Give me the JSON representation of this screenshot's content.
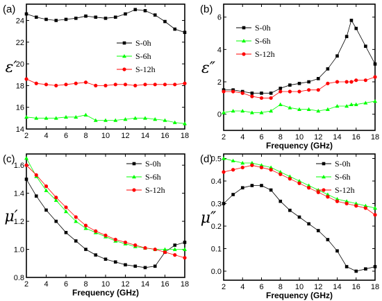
{
  "colors": {
    "s0": "#000000",
    "s6": "#00ff00",
    "s12": "#ff0000"
  },
  "chart_data": [
    {
      "type": "line",
      "panel_label": "(a)",
      "xlabel": "",
      "ylabel": "ε′",
      "xlim": [
        2,
        18
      ],
      "ylim": [
        14,
        25.5
      ],
      "xticks": [
        2,
        4,
        6,
        8,
        10,
        12,
        14,
        16,
        18
      ],
      "yticks": [
        14,
        16,
        18,
        20,
        22,
        24
      ],
      "legend_position": "center-right",
      "x": [
        2,
        3,
        4,
        5,
        6,
        7,
        8,
        9,
        10,
        11,
        12,
        13,
        14,
        15,
        16,
        17,
        18
      ],
      "series": [
        {
          "name": "S-0h",
          "color_key": "s0",
          "marker": "square",
          "values": [
            24.6,
            24.3,
            24.1,
            24.0,
            24.1,
            24.2,
            24.4,
            24.3,
            24.2,
            24.3,
            24.6,
            25.0,
            24.9,
            24.5,
            23.9,
            23.2,
            22.9
          ]
        },
        {
          "name": "S-6h",
          "color_key": "s6",
          "marker": "triangle",
          "values": [
            15.1,
            15.0,
            15.0,
            15.0,
            15.1,
            15.1,
            15.3,
            14.8,
            14.8,
            14.8,
            14.9,
            15.0,
            15.0,
            14.9,
            14.8,
            14.6,
            14.5
          ]
        },
        {
          "name": "S-12h",
          "color_key": "s12",
          "marker": "circle",
          "values": [
            18.6,
            18.2,
            18.1,
            18.0,
            18.1,
            18.2,
            18.3,
            18.0,
            18.0,
            18.1,
            18.1,
            18.0,
            18.1,
            18.1,
            18.1,
            18.1,
            18.2
          ]
        }
      ]
    },
    {
      "type": "line",
      "panel_label": "(b)",
      "xlabel": "Frequency (GHz)",
      "ylabel": "ε″",
      "xlim": [
        2,
        18
      ],
      "ylim": [
        -1,
        6.8
      ],
      "xticks": [
        2,
        4,
        6,
        8,
        10,
        12,
        14,
        16,
        18
      ],
      "yticks": [
        0,
        2,
        4,
        6
      ],
      "legend_position": "top-center",
      "x": [
        2,
        3,
        4,
        5,
        6,
        7,
        8,
        9,
        10,
        11,
        12,
        13,
        14,
        15,
        15.5,
        16,
        17,
        18
      ],
      "series": [
        {
          "name": "S-0h",
          "color_key": "s0",
          "marker": "square",
          "values": [
            1.5,
            1.5,
            1.4,
            1.3,
            1.3,
            1.3,
            1.6,
            1.8,
            1.9,
            2.0,
            2.2,
            2.8,
            3.6,
            4.8,
            5.8,
            5.3,
            4.2,
            3.1
          ]
        },
        {
          "name": "S-6h",
          "color_key": "s6",
          "marker": "triangle",
          "values": [
            0.1,
            0.2,
            0.2,
            0.1,
            0.1,
            0.2,
            0.6,
            0.4,
            0.3,
            0.3,
            0.2,
            0.3,
            0.5,
            0.5,
            0.6,
            0.6,
            0.7,
            0.8
          ]
        },
        {
          "name": "S-12h",
          "color_key": "s12",
          "marker": "circle",
          "values": [
            1.4,
            1.4,
            1.3,
            1.1,
            1.0,
            1.0,
            1.4,
            1.4,
            1.4,
            1.5,
            1.5,
            1.9,
            2.0,
            2.0,
            2.0,
            2.1,
            2.1,
            2.3
          ]
        }
      ]
    },
    {
      "type": "line",
      "panel_label": "(c)",
      "xlabel": "Frequency (GHz)",
      "ylabel": "μ′",
      "xlim": [
        2,
        18
      ],
      "ylim": [
        0.8,
        1.68
      ],
      "xticks": [
        2,
        4,
        6,
        8,
        10,
        12,
        14,
        16,
        18
      ],
      "yticks": [
        0.8,
        1.0,
        1.2,
        1.4,
        1.6
      ],
      "legend_position": "top-right",
      "x": [
        2,
        3,
        4,
        5,
        6,
        7,
        8,
        9,
        10,
        11,
        12,
        13,
        14,
        15,
        16,
        17,
        18
      ],
      "series": [
        {
          "name": "S-0h",
          "color_key": "s0",
          "marker": "square",
          "values": [
            1.5,
            1.38,
            1.28,
            1.2,
            1.12,
            1.06,
            1.0,
            0.96,
            0.93,
            0.91,
            0.89,
            0.88,
            0.87,
            0.88,
            0.98,
            1.03,
            1.05
          ]
        },
        {
          "name": "S-6h",
          "color_key": "s6",
          "marker": "triangle",
          "values": [
            1.65,
            1.52,
            1.42,
            1.35,
            1.27,
            1.2,
            1.15,
            1.12,
            1.09,
            1.06,
            1.04,
            1.02,
            1.01,
            1.0,
            1.0,
            1.0,
            1.0
          ]
        },
        {
          "name": "S-12h",
          "color_key": "s12",
          "marker": "circle",
          "values": [
            1.6,
            1.53,
            1.45,
            1.37,
            1.3,
            1.23,
            1.17,
            1.13,
            1.1,
            1.07,
            1.05,
            1.03,
            1.01,
            1.0,
            0.98,
            0.96,
            0.94
          ]
        }
      ]
    },
    {
      "type": "line",
      "panel_label": "(d)",
      "xlabel": "Frequency (GHz)",
      "ylabel": "μ″",
      "xlim": [
        2,
        18
      ],
      "ylim": [
        -0.04,
        0.52
      ],
      "xticks": [
        2,
        4,
        6,
        8,
        10,
        12,
        14,
        16,
        18
      ],
      "yticks": [
        0.0,
        0.1,
        0.2,
        0.3,
        0.4,
        0.5
      ],
      "legend_position": "top-right",
      "x": [
        2,
        3,
        4,
        5,
        6,
        7,
        8,
        9,
        10,
        11,
        12,
        13,
        14,
        15,
        16,
        17,
        18
      ],
      "series": [
        {
          "name": "S-0h",
          "color_key": "s0",
          "marker": "square",
          "values": [
            0.3,
            0.34,
            0.37,
            0.38,
            0.38,
            0.36,
            0.31,
            0.27,
            0.24,
            0.21,
            0.18,
            0.14,
            0.09,
            0.02,
            0.0,
            0.01,
            0.02
          ]
        },
        {
          "name": "S-6h",
          "color_key": "s6",
          "marker": "triangle",
          "values": [
            0.5,
            0.49,
            0.48,
            0.48,
            0.47,
            0.46,
            0.44,
            0.42,
            0.4,
            0.38,
            0.36,
            0.34,
            0.32,
            0.31,
            0.3,
            0.29,
            0.28
          ]
        },
        {
          "name": "S-12h",
          "color_key": "s12",
          "marker": "circle",
          "values": [
            0.44,
            0.45,
            0.46,
            0.47,
            0.46,
            0.45,
            0.43,
            0.41,
            0.39,
            0.37,
            0.35,
            0.33,
            0.31,
            0.3,
            0.29,
            0.28,
            0.25
          ]
        }
      ]
    }
  ]
}
